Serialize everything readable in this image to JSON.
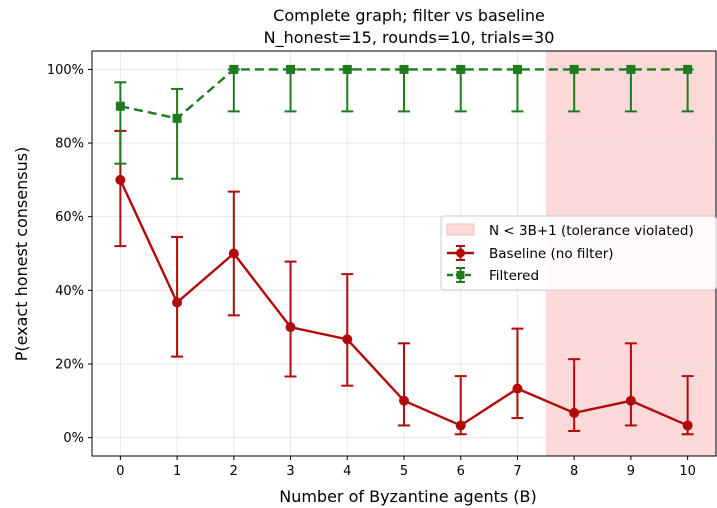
{
  "chart_data": {
    "type": "line",
    "title": "Complete graph; filter vs baseline",
    "subtitle": "N_honest=15, rounds=10, trials=30",
    "xlabel": "Number of Byzantine agents (B)",
    "ylabel": "P(exact honest consensus)",
    "x": [
      0,
      1,
      2,
      3,
      4,
      5,
      6,
      7,
      8,
      9,
      10
    ],
    "x_ticks": [
      "0",
      "1",
      "2",
      "3",
      "4",
      "5",
      "6",
      "7",
      "8",
      "9",
      "10"
    ],
    "xlim": [
      -0.5,
      10.5
    ],
    "ylim": [
      -5,
      105
    ],
    "y_ticks": [
      {
        "value": 0,
        "label": "0%"
      },
      {
        "value": 20,
        "label": "20%"
      },
      {
        "value": 40,
        "label": "40%"
      },
      {
        "value": 60,
        "label": "60%"
      },
      {
        "value": 80,
        "label": "80%"
      },
      {
        "value": 100,
        "label": "100%"
      }
    ],
    "grid": true,
    "legend_position": "center-right",
    "shaded_region": {
      "label": "N < 3B+1 (tolerance violated)",
      "x_start": 7.5,
      "x_end": 10.5,
      "color": "#fdd9d9"
    },
    "series": [
      {
        "name": "Baseline (no filter)",
        "color": "#b00a0a",
        "marker": "circle",
        "line_style": "solid",
        "values": [
          70,
          36.7,
          50,
          30,
          26.7,
          10,
          3.3,
          13.3,
          6.7,
          10,
          3.3
        ],
        "error_low": [
          52,
          22,
          33.2,
          16.6,
          14.1,
          3.3,
          0.9,
          5.3,
          1.8,
          3.3,
          0.9
        ],
        "error_high": [
          83.3,
          54.5,
          66.8,
          47.8,
          44.4,
          25.6,
          16.7,
          29.6,
          21.3,
          25.6,
          16.7
        ]
      },
      {
        "name": "Filtered",
        "color": "#1e7b1e",
        "marker": "square",
        "line_style": "dashed",
        "values": [
          90,
          86.7,
          100,
          100,
          100,
          100,
          100,
          100,
          100,
          100,
          100
        ],
        "error_low": [
          74.4,
          70.3,
          88.6,
          88.6,
          88.6,
          88.6,
          88.6,
          88.6,
          88.6,
          88.6,
          88.6
        ],
        "error_high": [
          96.5,
          94.7,
          100,
          100,
          100,
          100,
          100,
          100,
          100,
          100,
          100
        ]
      }
    ]
  }
}
